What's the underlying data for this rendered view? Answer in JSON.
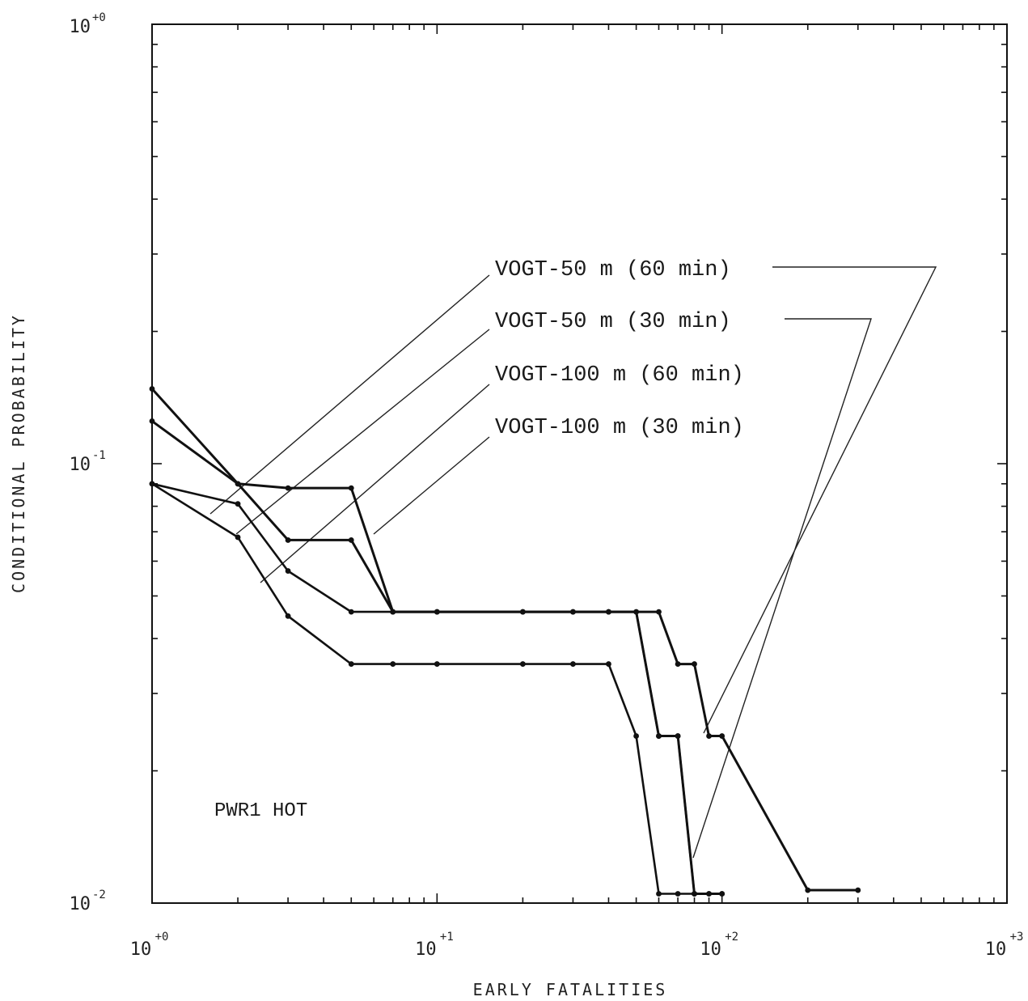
{
  "chart_data": {
    "type": "line",
    "xlabel": "EARLY FATALITIES",
    "ylabel": "CONDITIONAL PROBABILITY",
    "x_scale": "log",
    "y_scale": "log",
    "xlim": [
      1,
      1000
    ],
    "ylim": [
      0.01,
      1
    ],
    "grid": false,
    "x_ticks": [
      {
        "base": "10",
        "exp": "+0"
      },
      {
        "base": "10",
        "exp": "+1"
      },
      {
        "base": "10",
        "exp": "+2"
      },
      {
        "base": "10",
        "exp": "+3"
      }
    ],
    "y_ticks": [
      {
        "base": "10",
        "exp": "-2"
      },
      {
        "base": "10",
        "exp": "-1"
      },
      {
        "base": "10",
        "exp": "+0"
      }
    ],
    "annotation": "PWR1 HOT",
    "series": [
      {
        "name": "VOGT-50 m (60 min)",
        "points": [
          [
            1,
            0.148
          ],
          [
            2,
            0.09
          ],
          [
            3,
            0.088
          ],
          [
            5,
            0.088
          ],
          [
            7,
            0.046
          ],
          [
            10,
            0.046
          ],
          [
            20,
            0.046
          ],
          [
            30,
            0.046
          ],
          [
            40,
            0.046
          ],
          [
            60,
            0.046
          ],
          [
            70,
            0.035
          ],
          [
            80,
            0.035
          ],
          [
            90,
            0.024
          ],
          [
            100,
            0.024
          ],
          [
            200,
            0.0107
          ],
          [
            300,
            0.0107
          ]
        ]
      },
      {
        "name": "VOGT-50 m (30 min)",
        "points": [
          [
            1,
            0.125
          ],
          [
            2,
            0.09
          ],
          [
            3,
            0.067
          ],
          [
            5,
            0.067
          ],
          [
            7,
            0.046
          ],
          [
            10,
            0.046
          ],
          [
            20,
            0.046
          ],
          [
            30,
            0.046
          ],
          [
            40,
            0.046
          ],
          [
            50,
            0.046
          ],
          [
            60,
            0.024
          ],
          [
            70,
            0.024
          ],
          [
            80,
            0.0105
          ],
          [
            90,
            0.0105
          ],
          [
            100,
            0.0105
          ]
        ]
      },
      {
        "name": "VOGT-100 m (60 min)",
        "points": [
          [
            1,
            0.09
          ],
          [
            2,
            0.081
          ],
          [
            3,
            0.057
          ],
          [
            5,
            0.046
          ],
          [
            7,
            0.046
          ],
          [
            10,
            0.046
          ],
          [
            20,
            0.046
          ],
          [
            30,
            0.046
          ],
          [
            40,
            0.046
          ],
          [
            50,
            0.046
          ],
          [
            60,
            0.024
          ],
          [
            70,
            0.024
          ],
          [
            80,
            0.0105
          ],
          [
            90,
            0.0105
          ],
          [
            100,
            0.0105
          ]
        ]
      },
      {
        "name": "VOGT-100 m (30 min)",
        "points": [
          [
            1,
            0.09
          ],
          [
            2,
            0.068
          ],
          [
            3,
            0.045
          ],
          [
            5,
            0.035
          ],
          [
            7,
            0.035
          ],
          [
            10,
            0.035
          ],
          [
            20,
            0.035
          ],
          [
            30,
            0.035
          ],
          [
            40,
            0.035
          ],
          [
            50,
            0.024
          ],
          [
            60,
            0.0105
          ],
          [
            70,
            0.0105
          ],
          [
            80,
            0.0105
          ]
        ]
      }
    ]
  }
}
